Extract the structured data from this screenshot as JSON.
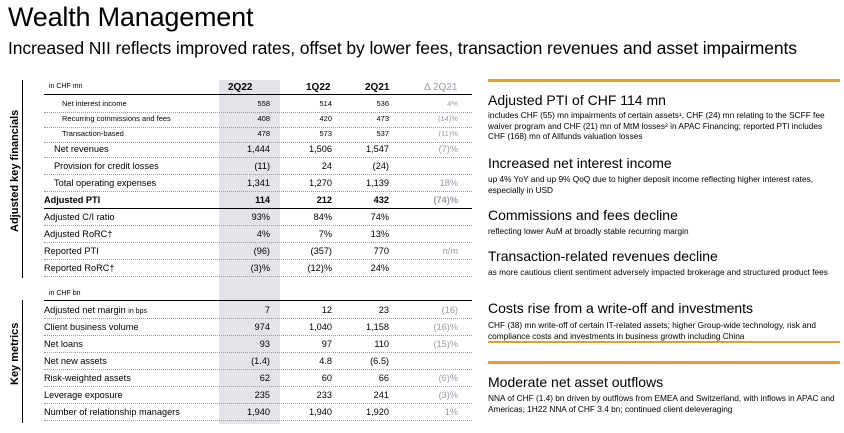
{
  "title": "Wealth Management",
  "subtitle": "Increased NII reflects improved rates, offset by lower fees, transaction revenues and asset impairments",
  "sections": {
    "financials_label": "Adjusted key financials",
    "metrics_label": "Key metrics",
    "unit_mn": "in CHF mn",
    "unit_bn": "in CHF bn"
  },
  "columns": [
    "2Q22",
    "1Q22",
    "2Q21",
    "Δ 2Q21"
  ],
  "financials": [
    {
      "label": "Net interest income",
      "v": [
        "558",
        "514",
        "536",
        "4%"
      ]
    },
    {
      "label": "Recurring commissions and fees",
      "v": [
        "408",
        "420",
        "473",
        "(14)%"
      ]
    },
    {
      "label": "Transaction-based",
      "v": [
        "478",
        "573",
        "537",
        "(11)%"
      ]
    },
    {
      "label": "Net revenues",
      "v": [
        "1,444",
        "1,506",
        "1,547",
        "(7)%"
      ]
    },
    {
      "label": "Provision for credit losses",
      "v": [
        "(11)",
        "24",
        "(24)",
        ""
      ]
    },
    {
      "label": "Total operating expenses",
      "v": [
        "1,341",
        "1,270",
        "1,139",
        "18%"
      ]
    },
    {
      "label": "Adjusted PTI",
      "v": [
        "114",
        "212",
        "432",
        "(74)%"
      ]
    },
    {
      "label": "Adjusted C/I ratio",
      "v": [
        "93%",
        "84%",
        "74%",
        ""
      ]
    },
    {
      "label": "Adjusted RoRC†",
      "v": [
        "4%",
        "7%",
        "13%",
        ""
      ]
    },
    {
      "label": "Reported PTI",
      "v": [
        "(96)",
        "(357)",
        "770",
        "n/m"
      ]
    },
    {
      "label": "Reported RoRC†",
      "v": [
        "(3)%",
        "(12)%",
        "24%",
        ""
      ]
    }
  ],
  "metrics": [
    {
      "label": "Adjusted net margin",
      "suffix": "in bps",
      "v": [
        "7",
        "12",
        "23",
        "(16)"
      ]
    },
    {
      "label": "Client business volume",
      "v": [
        "974",
        "1,040",
        "1,158",
        "(16)%"
      ]
    },
    {
      "label": "Net loans",
      "v": [
        "93",
        "97",
        "110",
        "(15)%"
      ]
    },
    {
      "label": "Net new assets",
      "v": [
        "(1.4)",
        "4.8",
        "(6.5)",
        ""
      ]
    },
    {
      "label": "Risk-weighted assets",
      "v": [
        "62",
        "60",
        "66",
        "(6)%"
      ]
    },
    {
      "label": "Leverage exposure",
      "v": [
        "235",
        "233",
        "241",
        "(3)%"
      ]
    },
    {
      "label": "Number of relationship managers",
      "v": [
        "1,940",
        "1,940",
        "1,920",
        "1%"
      ]
    }
  ],
  "highlights": [
    {
      "heading": "Adjusted PTI of CHF 114 mn",
      "text": "includes CHF (55) mn impairments of certain assets¹, CHF (24) mn relating to the SCFF fee waiver program and CHF (21) mn of MtM losses² in APAC Financing; reported PTI includes CHF (168) mn of Allfunds valuation losses"
    },
    {
      "heading": "Increased net interest income",
      "text": "up 4% YoY and up 9% QoQ due to higher deposit income reflecting higher interest rates, especially in USD"
    },
    {
      "heading": "Commissions and fees decline",
      "text": "reflecting lower AuM at broadly stable recurring margin"
    },
    {
      "heading": "Transaction-related revenues decline",
      "text": "as more cautious client sentiment adversely impacted brokerage and structured product fees"
    },
    {
      "heading": "Costs rise from a write-off and investments",
      "text": "CHF (38) mn write-off of certain IT-related assets; higher Group-wide technology, risk and compliance costs and investments in business growth including China"
    },
    {
      "heading": "Moderate net asset outflows",
      "text": "NNA of CHF (1.4) bn driven by outflows from EMEA and Switzerland, with inflows in APAC and Americas; 1H22 NNA of CHF 3.4 bn; continued client deleveraging"
    }
  ],
  "colors": {
    "accent": "#d8a23a",
    "shade": "#e3e3ea",
    "muted": "#9a9aa8"
  }
}
